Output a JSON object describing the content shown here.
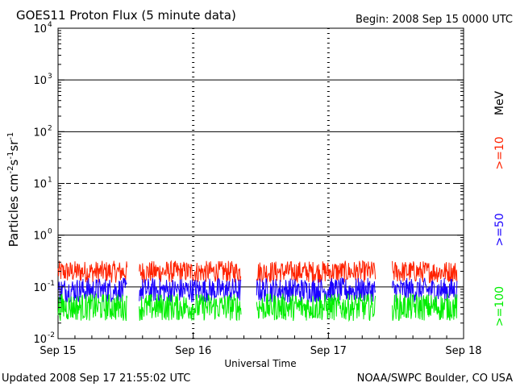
{
  "header": {
    "title": "GOES11 Proton Flux (5 minute data)",
    "begin": "Begin: 2008 Sep 15 0000 UTC"
  },
  "footer": {
    "updated": "Updated 2008 Sep 17 21:55:02 UTC",
    "credit": "NOAA/SWPC Boulder, CO USA"
  },
  "colors": {
    "ge10": "#ff2200",
    "ge50": "#1a00ff",
    "ge100": "#00ee00"
  },
  "chart_data": {
    "type": "line",
    "title": "GOES11 Proton Flux (5 minute data)",
    "xlabel": "Universal Time",
    "ylabel_parts": {
      "base": "Particles cm",
      "e1": "-2",
      "s": "s",
      "e2": "-1",
      "sr": "sr",
      "e3": "-1"
    },
    "y_scale": "log",
    "ylim": [
      0.01,
      10000
    ],
    "y_ticks": [
      {
        "value": 0.01,
        "base": "10",
        "exp": "-2"
      },
      {
        "value": 0.1,
        "base": "10",
        "exp": "-1"
      },
      {
        "value": 1,
        "base": "10",
        "exp": "0"
      },
      {
        "value": 10,
        "base": "10",
        "exp": "1"
      },
      {
        "value": 100,
        "base": "10",
        "exp": "2"
      },
      {
        "value": 1000,
        "base": "10",
        "exp": "3"
      },
      {
        "value": 10000,
        "base": "10",
        "exp": "4"
      }
    ],
    "xlim_hours": [
      0,
      72
    ],
    "x_ticks": [
      {
        "hour": 0,
        "label": "Sep 15"
      },
      {
        "hour": 24,
        "label": "Sep 16"
      },
      {
        "hour": 48,
        "label": "Sep 17"
      },
      {
        "hour": 72,
        "label": "Sep 18"
      }
    ],
    "thresholds": [
      {
        "value": 1,
        "style": "solid"
      },
      {
        "value": 10,
        "style": "dashed"
      },
      {
        "value": 100,
        "style": "solid"
      },
      {
        "value": 1000,
        "style": "solid"
      },
      {
        "value": 0.1,
        "style": "solid"
      }
    ],
    "data_gaps_hours": [
      [
        12.3,
        14.4
      ],
      [
        32.5,
        35.2
      ],
      [
        56.4,
        59.3
      ]
    ],
    "data_end_hour": 70.9,
    "series": [
      {
        "name": ">=10",
        "color_key": "ge10",
        "mean": 0.19,
        "low": 0.12,
        "high": 0.32
      },
      {
        "name": ">=50",
        "color_key": "ge50",
        "mean": 0.08,
        "low": 0.05,
        "high": 0.15
      },
      {
        "name": ">=100",
        "color_key": "ge100",
        "mean": 0.04,
        "low": 0.022,
        "high": 0.075
      }
    ],
    "legend": {
      "placement": "right",
      "unit": "MeV"
    }
  }
}
